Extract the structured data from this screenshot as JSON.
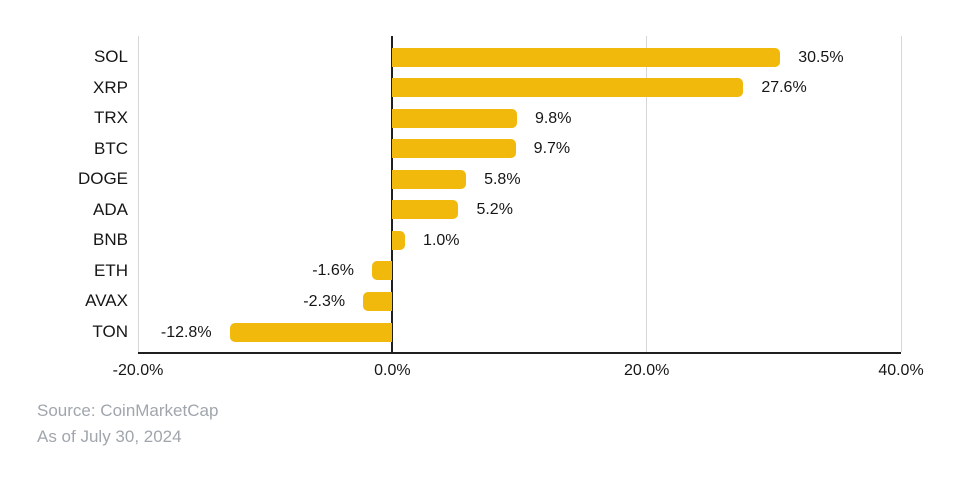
{
  "chart_data": {
    "type": "bar",
    "orientation": "horizontal",
    "categories": [
      "SOL",
      "XRP",
      "TRX",
      "BTC",
      "DOGE",
      "ADA",
      "BNB",
      "ETH",
      "AVAX",
      "TON"
    ],
    "values": [
      30.5,
      27.6,
      9.8,
      9.7,
      5.8,
      5.2,
      1.0,
      -1.6,
      -2.3,
      -12.8
    ],
    "value_labels": [
      "30.5%",
      "27.6%",
      "9.8%",
      "9.7%",
      "5.8%",
      "5.2%",
      "1.0%",
      "-1.6%",
      "-2.3%",
      "-12.8%"
    ],
    "xlim": [
      -20,
      40
    ],
    "x_ticks": [
      {
        "value": -20,
        "label": "-20.0%"
      },
      {
        "value": 0,
        "label": "0.0%"
      },
      {
        "value": 20,
        "label": "20.0%"
      },
      {
        "value": 40,
        "label": "40.0%"
      }
    ],
    "grid": "vertical-on",
    "legend": "none",
    "colors": {
      "bar": "#F0B90B",
      "gridline": "#D6D6D6",
      "axis": "#1F1F1F",
      "text": "#161616",
      "source_text": "#A0A6AC"
    }
  },
  "footer": {
    "source": "Source: CoinMarketCap",
    "as_of": "As of July 30, 2024"
  }
}
